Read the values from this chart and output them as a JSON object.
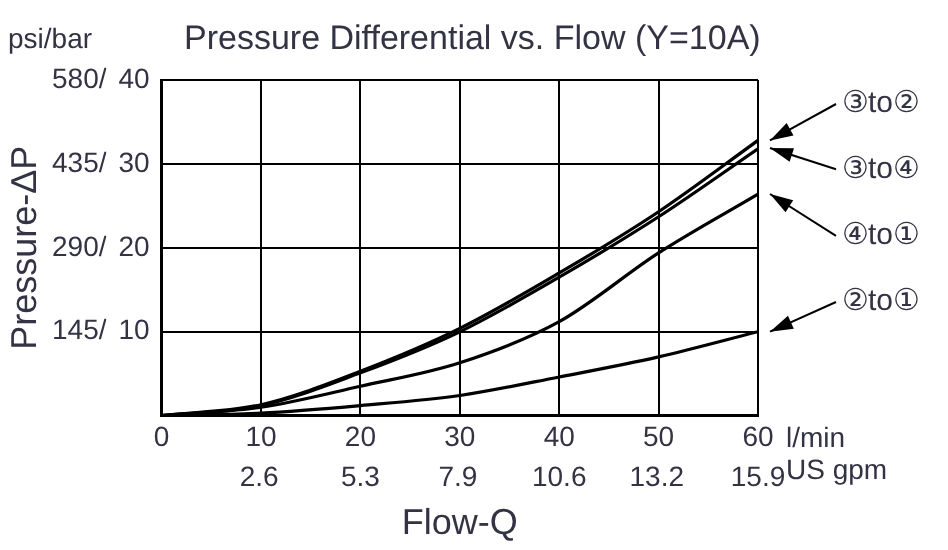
{
  "chart_data": {
    "type": "line",
    "title": "Pressure Differential vs. Flow (Y=10A)",
    "xlabel": "Flow-Q",
    "y2label": "Pressure-ΔP",
    "x": [
      0,
      10,
      20,
      30,
      40,
      50,
      60
    ],
    "series": [
      {
        "name": "③to②",
        "color": "#000000",
        "values": [
          0,
          1.3,
          5.3,
          10.4,
          17.0,
          24.3,
          32.8
        ]
      },
      {
        "name": "③to④",
        "color": "#000000",
        "values": [
          0,
          1.2,
          5.1,
          10.0,
          16.5,
          23.7,
          31.8
        ]
      },
      {
        "name": "④to①",
        "color": "#000000",
        "values": [
          0,
          1.0,
          3.5,
          6.3,
          11.2,
          19.4,
          26.4
        ]
      },
      {
        "name": "②to①",
        "color": "#000000",
        "values": [
          0,
          0.3,
          1.2,
          2.4,
          4.6,
          7.0,
          10.0
        ]
      }
    ],
    "xlim": [
      0,
      60
    ],
    "ylim": [
      0,
      40
    ],
    "xticks": [
      0,
      10,
      20,
      30,
      40,
      50,
      60
    ],
    "x2lim": [
      0,
      15.9
    ],
    "x2ticks": [
      2.6,
      5.3,
      7.9,
      10.6,
      13.2,
      15.9
    ],
    "yticks": [
      {
        "value": 0,
        "label": null
      },
      10,
      20,
      30,
      40
    ],
    "y2lim": [
      0,
      580
    ],
    "y2ticks": [
      {
        "value": 0,
        "label": null
      },
      {
        "value": 145,
        "label": "145/"
      },
      {
        "value": 290,
        "label": "290/"
      },
      {
        "value": 435,
        "label": "435/"
      },
      {
        "value": 580,
        "label": "580/"
      }
    ],
    "annotations": [
      "psi/bar",
      "l/min",
      "US gpm"
    ],
    "legend": "right",
    "grid": true,
    "marker": "none",
    "line_style": "solid"
  }
}
